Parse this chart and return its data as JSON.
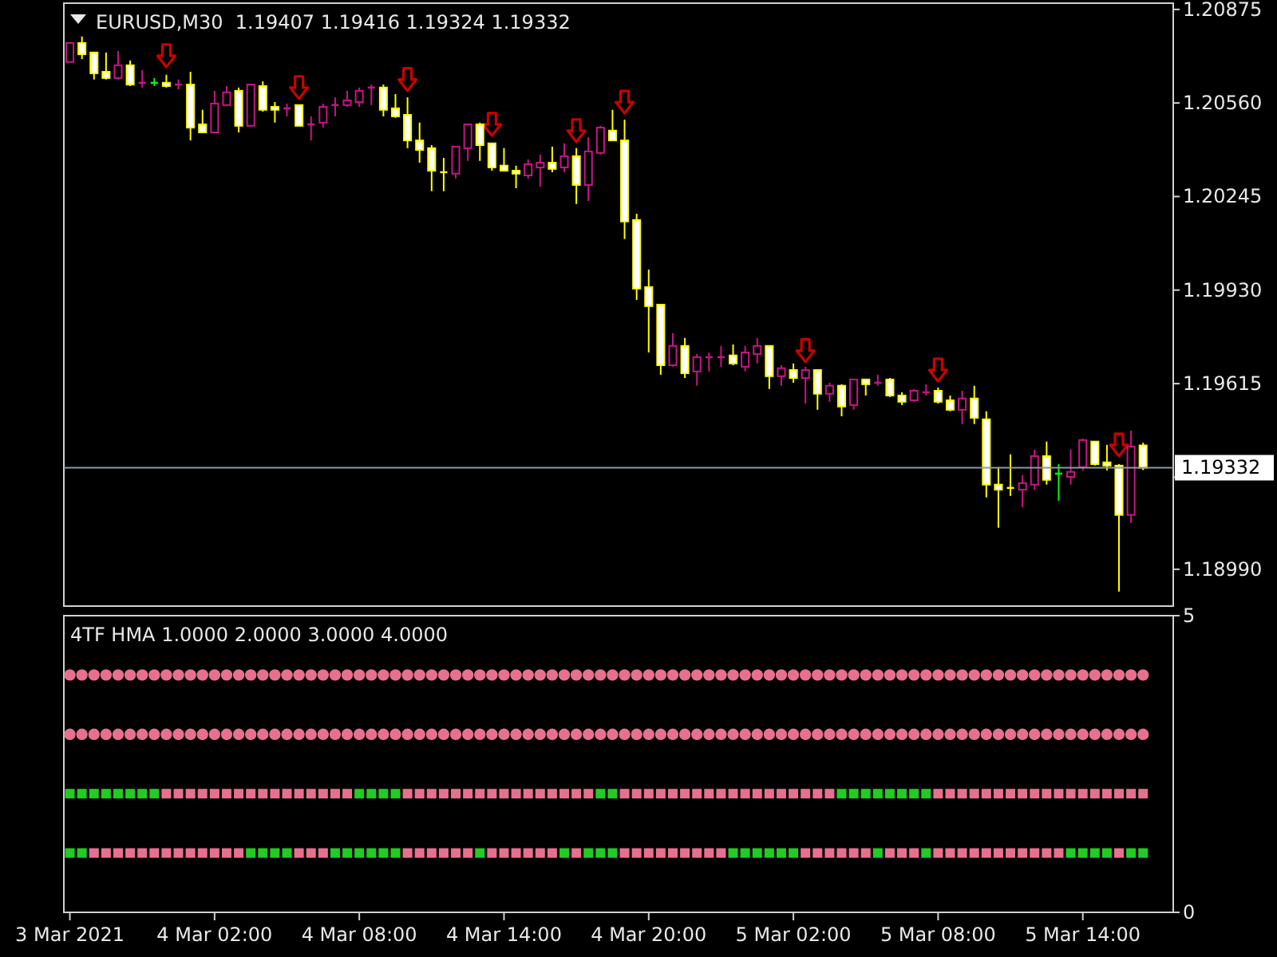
{
  "chart_data": [
    {
      "type": "candlestick",
      "title": "EURUSD,M30  1.19407 1.19416 1.19324 1.19332",
      "x": [
        "2021-03-03T20:00",
        "2021-03-03T20:30",
        "2021-03-03T21:00",
        "2021-03-03T21:30",
        "2021-03-03T22:00",
        "2021-03-03T22:30",
        "2021-03-03T23:00",
        "2021-03-03T23:30",
        "2021-03-04T00:00",
        "2021-03-04T00:30",
        "2021-03-04T01:00",
        "2021-03-04T01:30",
        "2021-03-04T02:00",
        "2021-03-04T02:30",
        "2021-03-04T03:00",
        "2021-03-04T03:30",
        "2021-03-04T04:00",
        "2021-03-04T04:30",
        "2021-03-04T05:00",
        "2021-03-04T05:30",
        "2021-03-04T06:00",
        "2021-03-04T06:30",
        "2021-03-04T07:00",
        "2021-03-04T07:30",
        "2021-03-04T08:00",
        "2021-03-04T08:30",
        "2021-03-04T09:00",
        "2021-03-04T09:30",
        "2021-03-04T10:00",
        "2021-03-04T10:30",
        "2021-03-04T11:00",
        "2021-03-04T11:30",
        "2021-03-04T12:00",
        "2021-03-04T12:30",
        "2021-03-04T13:00",
        "2021-03-04T13:30",
        "2021-03-04T14:00",
        "2021-03-04T14:30",
        "2021-03-04T15:00",
        "2021-03-04T15:30",
        "2021-03-04T16:00",
        "2021-03-04T16:30",
        "2021-03-04T17:00",
        "2021-03-04T17:30",
        "2021-03-04T18:00",
        "2021-03-04T18:30",
        "2021-03-04T19:00",
        "2021-03-04T19:30",
        "2021-03-04T20:00",
        "2021-03-04T20:30",
        "2021-03-04T21:00",
        "2021-03-04T21:30",
        "2021-03-04T22:00",
        "2021-03-04T22:30",
        "2021-03-04T23:00",
        "2021-03-04T23:30",
        "2021-03-05T00:00",
        "2021-03-05T00:30",
        "2021-03-05T01:00",
        "2021-03-05T01:30",
        "2021-03-05T02:00",
        "2021-03-05T02:30",
        "2021-03-05T03:00",
        "2021-03-05T03:30",
        "2021-03-05T04:00",
        "2021-03-05T04:30",
        "2021-03-05T05:00",
        "2021-03-05T05:30",
        "2021-03-05T06:00",
        "2021-03-05T06:30",
        "2021-03-05T07:00",
        "2021-03-05T07:30",
        "2021-03-05T08:00",
        "2021-03-05T08:30",
        "2021-03-05T09:00",
        "2021-03-05T09:30",
        "2021-03-05T10:00",
        "2021-03-05T10:30",
        "2021-03-05T11:00",
        "2021-03-05T11:30",
        "2021-03-05T12:00",
        "2021-03-05T12:30",
        "2021-03-05T13:00",
        "2021-03-05T13:30",
        "2021-03-05T14:00",
        "2021-03-05T14:30",
        "2021-03-05T15:00",
        "2021-03-05T15:30",
        "2021-03-05T16:00",
        "2021-03-05T16:30"
      ],
      "ohlc": [
        [
          1.20698,
          1.20762,
          1.20698,
          1.20762
        ],
        [
          1.20762,
          1.20784,
          1.20708,
          1.20724
        ],
        [
          1.2073,
          1.2073,
          1.20639,
          1.2066
        ],
        [
          1.20665,
          1.2073,
          1.20639,
          1.20644
        ],
        [
          1.20644,
          1.20735,
          1.20639,
          1.20687
        ],
        [
          1.20687,
          1.20703,
          1.20617,
          1.20622
        ],
        [
          1.20625,
          1.20671,
          1.20612,
          1.20628
        ],
        [
          1.20628,
          1.20644,
          1.20617,
          1.20628
        ],
        [
          1.20628,
          1.20655,
          1.20612,
          1.20617
        ],
        [
          1.2062,
          1.20639,
          1.20606,
          1.20622
        ],
        [
          1.20622,
          1.20665,
          1.20434,
          1.20477
        ],
        [
          1.20488,
          1.20537,
          1.20461,
          1.20461
        ],
        [
          1.20461,
          1.20601,
          1.20461,
          1.20558
        ],
        [
          1.20553,
          1.20617,
          1.20553,
          1.20596
        ],
        [
          1.20601,
          1.20612,
          1.20461,
          1.20483
        ],
        [
          1.20483,
          1.20622,
          1.20483,
          1.20622
        ],
        [
          1.20617,
          1.20633,
          1.20531,
          1.20537
        ],
        [
          1.20547,
          1.20563,
          1.20494,
          1.20537
        ],
        [
          1.2054,
          1.20558,
          1.20515,
          1.20542
        ],
        [
          1.20553,
          1.20553,
          1.20483,
          1.20483
        ],
        [
          1.20486,
          1.20515,
          1.20434,
          1.20488
        ],
        [
          1.20494,
          1.20558,
          1.20477,
          1.20547
        ],
        [
          1.2055,
          1.20579,
          1.20515,
          1.20553
        ],
        [
          1.20553,
          1.20601,
          1.20547,
          1.20569
        ],
        [
          1.20563,
          1.20612,
          1.20547,
          1.20601
        ],
        [
          1.20609,
          1.20622,
          1.20553,
          1.20612
        ],
        [
          1.20612,
          1.20622,
          1.20515,
          1.20537
        ],
        [
          1.20542,
          1.2059,
          1.2051,
          1.20515
        ],
        [
          1.2052,
          1.20579,
          1.20408,
          1.20434
        ],
        [
          1.20434,
          1.20494,
          1.20359,
          1.20402
        ],
        [
          1.20408,
          1.20418,
          1.20263,
          1.20332
        ],
        [
          1.2033,
          1.20375,
          1.20263,
          1.20327
        ],
        [
          1.20322,
          1.20413,
          1.20306,
          1.20413
        ],
        [
          1.20408,
          1.20488,
          1.20365,
          1.20488
        ],
        [
          1.20488,
          1.20494,
          1.20365,
          1.20418
        ],
        [
          1.20424,
          1.20424,
          1.20332,
          1.20343
        ],
        [
          1.20349,
          1.20408,
          1.20332,
          1.20332
        ],
        [
          1.20332,
          1.20349,
          1.20273,
          1.20322
        ],
        [
          1.20316,
          1.2037,
          1.20306,
          1.20354
        ],
        [
          1.20343,
          1.20386,
          1.20279,
          1.20359
        ],
        [
          1.20359,
          1.20413,
          1.20327,
          1.20338
        ],
        [
          1.20343,
          1.20424,
          1.20327,
          1.20381
        ],
        [
          1.20381,
          1.20408,
          1.2022,
          1.20284
        ],
        [
          1.20284,
          1.20445,
          1.2023,
          1.20397
        ],
        [
          1.20392,
          1.20483,
          1.20386,
          1.20477
        ],
        [
          1.20467,
          1.20537,
          1.20434,
          1.20434
        ],
        [
          1.20434,
          1.20504,
          1.20102,
          1.20161
        ],
        [
          1.20166,
          1.20187,
          1.19897,
          1.19935
        ],
        [
          1.1994,
          1.19999,
          1.1972,
          1.19876
        ],
        [
          1.19881,
          1.19881,
          1.19645,
          1.19677
        ],
        [
          1.19677,
          1.19785,
          1.19672,
          1.19742
        ],
        [
          1.19742,
          1.19769,
          1.19634,
          1.1965
        ],
        [
          1.19656,
          1.19715,
          1.19608,
          1.19704
        ],
        [
          1.19702,
          1.1972,
          1.19656,
          1.19704
        ],
        [
          1.19702,
          1.19742,
          1.19672,
          1.19704
        ],
        [
          1.1971,
          1.19747,
          1.19677,
          1.19683
        ],
        [
          1.19672,
          1.19742,
          1.19656,
          1.1972
        ],
        [
          1.19715,
          1.19769,
          1.19683,
          1.19742
        ],
        [
          1.19742,
          1.19742,
          1.19597,
          1.1964
        ],
        [
          1.1964,
          1.19677,
          1.19608,
          1.19667
        ],
        [
          1.19661,
          1.19683,
          1.19618,
          1.19634
        ],
        [
          1.19634,
          1.19672,
          1.19548,
          1.19661
        ],
        [
          1.19661,
          1.19661,
          1.19527,
          1.19581
        ],
        [
          1.19581,
          1.19618,
          1.19554,
          1.19608
        ],
        [
          1.19608,
          1.19613,
          1.19505,
          1.19538
        ],
        [
          1.19543,
          1.19629,
          1.19527,
          1.19629
        ],
        [
          1.19629,
          1.19629,
          1.19575,
          1.19613
        ],
        [
          1.19616,
          1.19645,
          1.19608,
          1.19618
        ],
        [
          1.19629,
          1.19634,
          1.1957,
          1.19575
        ],
        [
          1.19575,
          1.19586,
          1.19543,
          1.19554
        ],
        [
          1.19559,
          1.19597,
          1.19554,
          1.19591
        ],
        [
          1.19584,
          1.19613,
          1.19575,
          1.19586
        ],
        [
          1.19591,
          1.19602,
          1.19548,
          1.19554
        ],
        [
          1.19559,
          1.19575,
          1.19522,
          1.19527
        ],
        [
          1.19527,
          1.19591,
          1.19479,
          1.19565
        ],
        [
          1.19565,
          1.19608,
          1.19479,
          1.195
        ],
        [
          1.19495,
          1.19522,
          1.19232,
          1.19275
        ],
        [
          1.19275,
          1.19334,
          1.1913,
          1.19258
        ],
        [
          1.19266,
          1.19377,
          1.19237,
          1.19264
        ],
        [
          1.19258,
          1.19307,
          1.19199,
          1.1928
        ],
        [
          1.19275,
          1.19393,
          1.19258,
          1.19371
        ],
        [
          1.19371,
          1.1942,
          1.19275,
          1.19291
        ],
        [
          1.19312,
          1.19344,
          1.19221,
          1.19312
        ],
        [
          1.19301,
          1.19393,
          1.19275,
          1.19318
        ],
        [
          1.19334,
          1.1943,
          1.19323,
          1.19425
        ],
        [
          1.1942,
          1.1942,
          1.19339,
          1.19344
        ],
        [
          1.1935,
          1.19409,
          1.19323,
          1.19339
        ],
        [
          1.19339,
          1.19344,
          1.18915,
          1.19173
        ],
        [
          1.19173,
          1.19457,
          1.19146,
          1.19403
        ],
        [
          1.19407,
          1.19416,
          1.19324,
          1.19332
        ]
      ],
      "colors": [
        "#c71585",
        "#ffff00",
        "#ffff00",
        "#ffff00",
        "#c71585",
        "#ffff00",
        "#c71585",
        "#00ff00",
        "#ffff00",
        "#c71585",
        "#ffff00",
        "#ffff00",
        "#c71585",
        "#c71585",
        "#ffff00",
        "#c71585",
        "#ffff00",
        "#ffff00",
        "#c71585",
        "#ffff00",
        "#c71585",
        "#c71585",
        "#c71585",
        "#c71585",
        "#c71585",
        "#c71585",
        "#ffff00",
        "#ffff00",
        "#ffff00",
        "#ffff00",
        "#ffff00",
        "#ffff00",
        "#c71585",
        "#c71585",
        "#ffff00",
        "#ffff00",
        "#ffff00",
        "#ffff00",
        "#c71585",
        "#c71585",
        "#ffff00",
        "#c71585",
        "#ffff00",
        "#c71585",
        "#c71585",
        "#ffff00",
        "#ffff00",
        "#ffff00",
        "#ffff00",
        "#ffff00",
        "#c71585",
        "#ffff00",
        "#c71585",
        "#c71585",
        "#c71585",
        "#ffff00",
        "#c71585",
        "#c71585",
        "#ffff00",
        "#c71585",
        "#ffff00",
        "#c71585",
        "#ffff00",
        "#c71585",
        "#ffff00",
        "#c71585",
        "#ffff00",
        "#c71585",
        "#ffff00",
        "#ffff00",
        "#c71585",
        "#c71585",
        "#ffff00",
        "#ffff00",
        "#c71585",
        "#ffff00",
        "#ffff00",
        "#ffff00",
        "#ffff00",
        "#c71585",
        "#c71585",
        "#ffff00",
        "#00ff00",
        "#c71585",
        "#c71585",
        "#ffff00",
        "#ffff00",
        "#ffff00",
        "#c71585",
        "#ffff00"
      ],
      "series": [
        {
          "type": "scatter",
          "color": "#cc0000",
          "x": [
            "2021-03-04T00:00",
            "2021-03-04T05:30",
            "2021-03-04T10:00",
            "2021-03-04T13:30",
            "2021-03-04T17:00",
            "2021-03-04T19:00",
            "2021-03-05T02:30",
            "2021-03-05T08:00",
            "2021-03-05T15:30"
          ],
          "values": [
            1.20719,
            1.20612,
            1.20639,
            1.20488,
            1.20467,
            1.20563,
            1.19726,
            1.19661,
            1.19409
          ]
        }
      ],
      "xlim": [
        "2021-03-03T19:45",
        "2021-03-05T17:45"
      ],
      "ylim": [
        1.18866,
        1.20896
      ],
      "yticks": [
        1.20875,
        {
          "value": 1.2056,
          "label": "1.20560"
        },
        1.20245,
        {
          "value": 1.1993,
          "label": "1.19930"
        },
        1.19615,
        {
          "value": 1.193,
          "label": null
        },
        {
          "value": 1.1899,
          "label": "1.18990"
        }
      ],
      "ref_lines": [
        {
          "axis": "y",
          "value": 1.19332,
          "label": "1.19332",
          "color": "#8a9aa8"
        }
      ],
      "tick_labels": "y"
    },
    {
      "type": "scatter",
      "title": "4TF HMA 1.0000 2.0000 3.0000 4.0000",
      "x": [
        "2021-03-03T20:00",
        "2021-03-03T20:30",
        "2021-03-03T21:00",
        "2021-03-03T21:30",
        "2021-03-03T22:00",
        "2021-03-03T22:30",
        "2021-03-03T23:00",
        "2021-03-03T23:30",
        "2021-03-04T00:00",
        "2021-03-04T00:30",
        "2021-03-04T01:00",
        "2021-03-04T01:30",
        "2021-03-04T02:00",
        "2021-03-04T02:30",
        "2021-03-04T03:00",
        "2021-03-04T03:30",
        "2021-03-04T04:00",
        "2021-03-04T04:30",
        "2021-03-04T05:00",
        "2021-03-04T05:30",
        "2021-03-04T06:00",
        "2021-03-04T06:30",
        "2021-03-04T07:00",
        "2021-03-04T07:30",
        "2021-03-04T08:00",
        "2021-03-04T08:30",
        "2021-03-04T09:00",
        "2021-03-04T09:30",
        "2021-03-04T10:00",
        "2021-03-04T10:30",
        "2021-03-04T11:00",
        "2021-03-04T11:30",
        "2021-03-04T12:00",
        "2021-03-04T12:30",
        "2021-03-04T13:00",
        "2021-03-04T13:30",
        "2021-03-04T14:00",
        "2021-03-04T14:30",
        "2021-03-04T15:00",
        "2021-03-04T15:30",
        "2021-03-04T16:00",
        "2021-03-04T16:30",
        "2021-03-04T17:00",
        "2021-03-04T17:30",
        "2021-03-04T18:00",
        "2021-03-04T18:30",
        "2021-03-04T19:00",
        "2021-03-04T19:30",
        "2021-03-04T20:00",
        "2021-03-04T20:30",
        "2021-03-04T21:00",
        "2021-03-04T21:30",
        "2021-03-04T22:00",
        "2021-03-04T22:30",
        "2021-03-04T23:00",
        "2021-03-04T23:30",
        "2021-03-05T00:00",
        "2021-03-05T00:30",
        "2021-03-05T01:00",
        "2021-03-05T01:30",
        "2021-03-05T02:00",
        "2021-03-05T02:30",
        "2021-03-05T03:00",
        "2021-03-05T03:30",
        "2021-03-05T04:00",
        "2021-03-05T04:30",
        "2021-03-05T05:00",
        "2021-03-05T05:30",
        "2021-03-05T06:00",
        "2021-03-05T06:30",
        "2021-03-05T07:00",
        "2021-03-05T07:30",
        "2021-03-05T08:00",
        "2021-03-05T08:30",
        "2021-03-05T09:00",
        "2021-03-05T09:30",
        "2021-03-05T10:00",
        "2021-03-05T10:30",
        "2021-03-05T11:00",
        "2021-03-05T11:30",
        "2021-03-05T12:00",
        "2021-03-05T12:30",
        "2021-03-05T13:00",
        "2021-03-05T13:30",
        "2021-03-05T14:00",
        "2021-03-05T14:30",
        "2021-03-05T15:00",
        "2021-03-05T15:30",
        "2021-03-05T16:00",
        "2021-03-05T16:30"
      ],
      "series": [
        {
          "marker": "circle",
          "color": "#e8708f",
          "values": [
            4,
            4,
            4,
            4,
            4,
            4,
            4,
            4,
            4,
            4,
            4,
            4,
            4,
            4,
            4,
            4,
            4,
            4,
            4,
            4,
            4,
            4,
            4,
            4,
            4,
            4,
            4,
            4,
            4,
            4,
            4,
            4,
            4,
            4,
            4,
            4,
            4,
            4,
            4,
            4,
            4,
            4,
            4,
            4,
            4,
            4,
            4,
            4,
            4,
            4,
            4,
            4,
            4,
            4,
            4,
            4,
            4,
            4,
            4,
            4,
            4,
            4,
            4,
            4,
            4,
            4,
            4,
            4,
            4,
            4,
            4,
            4,
            4,
            4,
            4,
            4,
            4,
            4,
            4,
            4,
            4,
            4,
            4,
            4,
            4,
            4,
            4,
            4,
            4,
            4
          ]
        },
        {
          "marker": "circle",
          "color": "#e8708f",
          "values": [
            3,
            3,
            3,
            3,
            3,
            3,
            3,
            3,
            3,
            3,
            3,
            3,
            3,
            3,
            3,
            3,
            3,
            3,
            3,
            3,
            3,
            3,
            3,
            3,
            3,
            3,
            3,
            3,
            3,
            3,
            3,
            3,
            3,
            3,
            3,
            3,
            3,
            3,
            3,
            3,
            3,
            3,
            3,
            3,
            3,
            3,
            3,
            3,
            3,
            3,
            3,
            3,
            3,
            3,
            3,
            3,
            3,
            3,
            3,
            3,
            3,
            3,
            3,
            3,
            3,
            3,
            3,
            3,
            3,
            3,
            3,
            3,
            3,
            3,
            3,
            3,
            3,
            3,
            3,
            3,
            3,
            3,
            3,
            3,
            3,
            3,
            3,
            3,
            3,
            3
          ]
        },
        {
          "marker": "square",
          "values": [
            2,
            2,
            2,
            2,
            2,
            2,
            2,
            2,
            2,
            2,
            2,
            2,
            2,
            2,
            2,
            2,
            2,
            2,
            2,
            2,
            2,
            2,
            2,
            2,
            2,
            2,
            2,
            2,
            2,
            2,
            2,
            2,
            2,
            2,
            2,
            2,
            2,
            2,
            2,
            2,
            2,
            2,
            2,
            2,
            2,
            2,
            2,
            2,
            2,
            2,
            2,
            2,
            2,
            2,
            2,
            2,
            2,
            2,
            2,
            2,
            2,
            2,
            2,
            2,
            2,
            2,
            2,
            2,
            2,
            2,
            2,
            2,
            2,
            2,
            2,
            2,
            2,
            2,
            2,
            2,
            2,
            2,
            2,
            2,
            2,
            2,
            2,
            2,
            2,
            2
          ],
          "colors": [
            "#22cc22",
            "#22cc22",
            "#22cc22",
            "#22cc22",
            "#22cc22",
            "#22cc22",
            "#22cc22",
            "#22cc22",
            "#e8708f",
            "#e8708f",
            "#e8708f",
            "#e8708f",
            "#e8708f",
            "#e8708f",
            "#e8708f",
            "#e8708f",
            "#e8708f",
            "#e8708f",
            "#e8708f",
            "#e8708f",
            "#e8708f",
            "#e8708f",
            "#e8708f",
            "#e8708f",
            "#22cc22",
            "#22cc22",
            "#22cc22",
            "#22cc22",
            "#e8708f",
            "#e8708f",
            "#e8708f",
            "#e8708f",
            "#e8708f",
            "#e8708f",
            "#e8708f",
            "#e8708f",
            "#e8708f",
            "#e8708f",
            "#e8708f",
            "#e8708f",
            "#e8708f",
            "#e8708f",
            "#e8708f",
            "#e8708f",
            "#22cc22",
            "#22cc22",
            "#e8708f",
            "#e8708f",
            "#e8708f",
            "#e8708f",
            "#e8708f",
            "#e8708f",
            "#e8708f",
            "#e8708f",
            "#e8708f",
            "#e8708f",
            "#e8708f",
            "#e8708f",
            "#e8708f",
            "#e8708f",
            "#e8708f",
            "#e8708f",
            "#e8708f",
            "#e8708f",
            "#22cc22",
            "#22cc22",
            "#22cc22",
            "#22cc22",
            "#22cc22",
            "#22cc22",
            "#22cc22",
            "#22cc22",
            "#e8708f",
            "#e8708f",
            "#e8708f",
            "#e8708f",
            "#e8708f",
            "#e8708f",
            "#e8708f",
            "#e8708f",
            "#e8708f",
            "#e8708f",
            "#e8708f",
            "#e8708f",
            "#e8708f",
            "#e8708f",
            "#e8708f",
            "#e8708f",
            "#e8708f",
            "#e8708f"
          ]
        },
        {
          "marker": "square",
          "values": [
            1,
            1,
            1,
            1,
            1,
            1,
            1,
            1,
            1,
            1,
            1,
            1,
            1,
            1,
            1,
            1,
            1,
            1,
            1,
            1,
            1,
            1,
            1,
            1,
            1,
            1,
            1,
            1,
            1,
            1,
            1,
            1,
            1,
            1,
            1,
            1,
            1,
            1,
            1,
            1,
            1,
            1,
            1,
            1,
            1,
            1,
            1,
            1,
            1,
            1,
            1,
            1,
            1,
            1,
            1,
            1,
            1,
            1,
            1,
            1,
            1,
            1,
            1,
            1,
            1,
            1,
            1,
            1,
            1,
            1,
            1,
            1,
            1,
            1,
            1,
            1,
            1,
            1,
            1,
            1,
            1,
            1,
            1,
            1,
            1,
            1,
            1,
            1,
            1,
            1
          ],
          "colors": [
            "#22cc22",
            "#22cc22",
            "#e8708f",
            "#e8708f",
            "#e8708f",
            "#e8708f",
            "#e8708f",
            "#e8708f",
            "#e8708f",
            "#e8708f",
            "#e8708f",
            "#e8708f",
            "#e8708f",
            "#e8708f",
            "#e8708f",
            "#22cc22",
            "#22cc22",
            "#22cc22",
            "#22cc22",
            "#e8708f",
            "#e8708f",
            "#e8708f",
            "#22cc22",
            "#22cc22",
            "#22cc22",
            "#22cc22",
            "#22cc22",
            "#22cc22",
            "#e8708f",
            "#e8708f",
            "#e8708f",
            "#e8708f",
            "#e8708f",
            "#e8708f",
            "#22cc22",
            "#e8708f",
            "#e8708f",
            "#e8708f",
            "#e8708f",
            "#e8708f",
            "#e8708f",
            "#22cc22",
            "#e8708f",
            "#22cc22",
            "#22cc22",
            "#22cc22",
            "#e8708f",
            "#e8708f",
            "#e8708f",
            "#e8708f",
            "#e8708f",
            "#e8708f",
            "#e8708f",
            "#e8708f",
            "#e8708f",
            "#22cc22",
            "#22cc22",
            "#22cc22",
            "#22cc22",
            "#22cc22",
            "#22cc22",
            "#e8708f",
            "#e8708f",
            "#e8708f",
            "#e8708f",
            "#e8708f",
            "#e8708f",
            "#22cc22",
            "#e8708f",
            "#e8708f",
            "#e8708f",
            "#22cc22",
            "#e8708f",
            "#e8708f",
            "#e8708f",
            "#e8708f",
            "#e8708f",
            "#e8708f",
            "#e8708f",
            "#e8708f",
            "#e8708f",
            "#e8708f",
            "#e8708f",
            "#22cc22",
            "#22cc22",
            "#22cc22",
            "#22cc22",
            "#e8708f",
            "#22cc22",
            "#22cc22"
          ]
        }
      ],
      "xlim": [
        "2021-03-03T19:45",
        "2021-03-05T17:45"
      ],
      "xticks": [
        {
          "value": "2021-03-03T20:00",
          "label": "3 Mar 2021"
        },
        {
          "value": "2021-03-04T02:00",
          "label": "4 Mar 02:00"
        },
        {
          "value": "2021-03-04T08:00",
          "label": "4 Mar 08:00"
        },
        {
          "value": "2021-03-04T14:00",
          "label": "4 Mar 14:00"
        },
        {
          "value": "2021-03-04T20:00",
          "label": "4 Mar 20:00"
        },
        {
          "value": "2021-03-05T02:00",
          "label": "5 Mar 02:00"
        },
        {
          "value": "2021-03-05T08:00",
          "label": "5 Mar 08:00"
        },
        {
          "value": "2021-03-05T14:00",
          "label": "5 Mar 14:00"
        }
      ],
      "ylim": [
        0,
        5
      ],
      "yticks": [
        0,
        5
      ]
    }
  ]
}
